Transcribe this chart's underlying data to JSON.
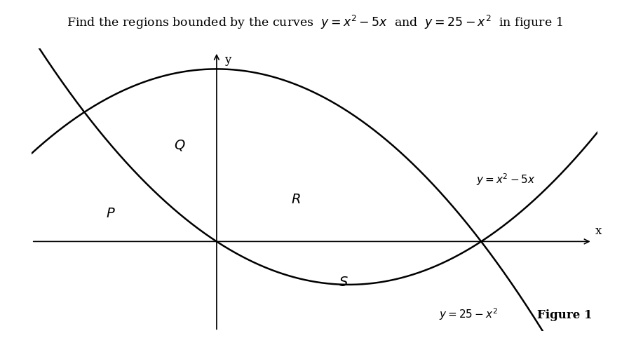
{
  "title": "Find the regions bounded by the curves  $y = x^2 - 5x$  and  $y = 25 - x^2$  in figure 1",
  "title_fontsize": 12.5,
  "label_Q": "$Q$",
  "label_R": "$R$",
  "label_P": "$P$",
  "label_S": "$S$",
  "label_y": "y",
  "label_x": "x",
  "label_curve1": "$y = x^2 - 5x$",
  "label_curve2": "$y = 25 - x^2$",
  "figure_label": "Figure 1",
  "x_min": -3.5,
  "x_max": 7.2,
  "y_min": -13,
  "y_max": 28,
  "curve_color": "#000000",
  "axis_color": "#000000",
  "bg_color": "#ffffff",
  "curve_linewidth": 1.8
}
